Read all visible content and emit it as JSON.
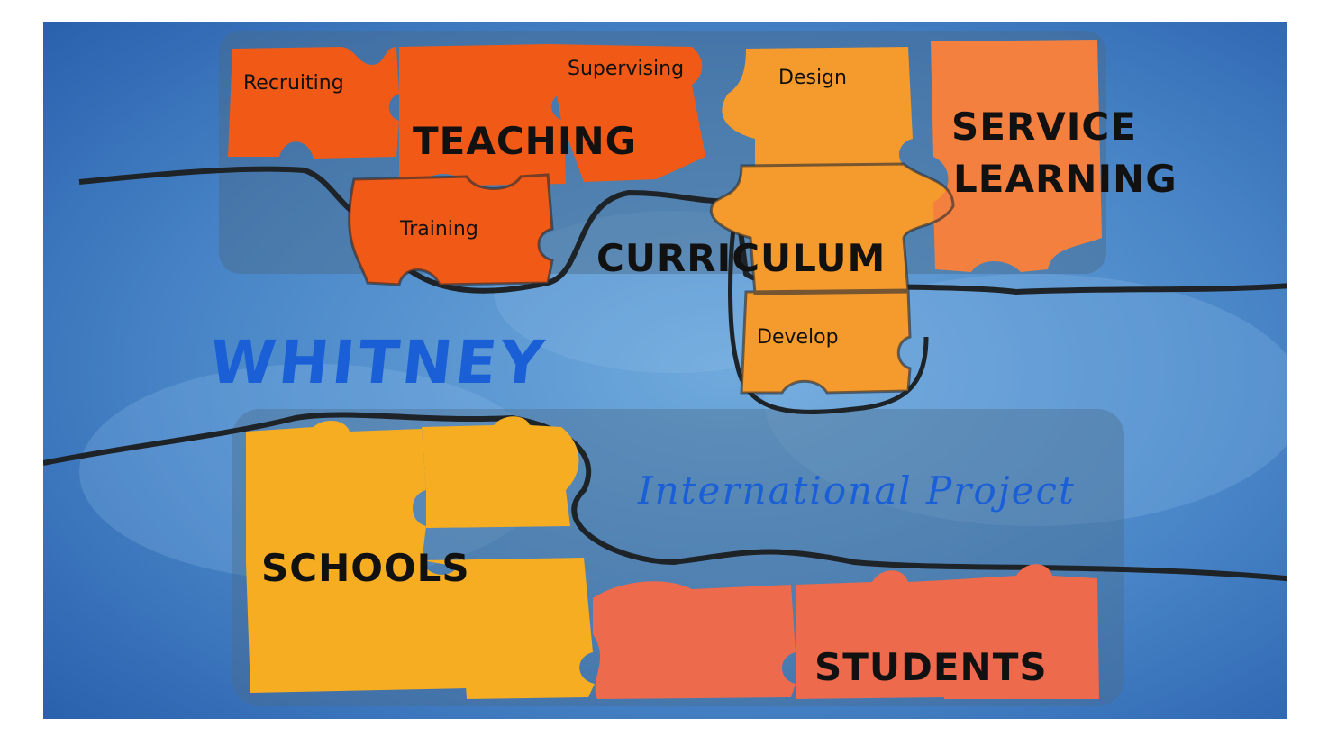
{
  "title": "WHITNEY",
  "subtitle": "International Project",
  "labels": {
    "recruiting": "Recruiting",
    "supervising": "Supervising",
    "design": "Design",
    "teaching": "TEACHING",
    "service": "SERVICE",
    "learning": "LEARNING",
    "training": "Training",
    "curriculum": "CURRICULUM",
    "develop": "Develop",
    "schools": "SCHOOLS",
    "students": "STUDENTS"
  },
  "colors": {
    "background": "#3f7fc4",
    "teaching": "#f05a16",
    "curriculum": "#f59a2c",
    "service": "#f3803f",
    "schools": "#f7ad22",
    "students": "#ee6a4c",
    "title": "#1a5fd6"
  }
}
